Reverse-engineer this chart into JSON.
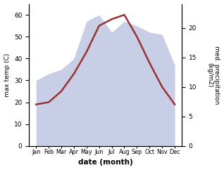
{
  "months": [
    "Jan",
    "Feb",
    "Mar",
    "Apr",
    "May",
    "Jun",
    "Jul",
    "Aug",
    "Sep",
    "Oct",
    "Nov",
    "Dec"
  ],
  "temp_max": [
    19,
    20,
    25,
    33,
    43,
    55,
    58,
    60,
    50,
    38,
    27,
    19
  ],
  "precip": [
    30,
    33,
    35,
    40,
    57,
    60,
    52,
    57,
    55,
    52,
    51,
    37
  ],
  "temp_ylim": [
    0,
    65
  ],
  "precip_ylim": [
    0,
    24.1
  ],
  "temp_yticks": [
    0,
    10,
    20,
    30,
    40,
    50,
    60
  ],
  "precip_yticks": [
    0,
    5,
    10,
    15,
    20
  ],
  "fill_color": "#aab4d8",
  "fill_alpha": 0.65,
  "line_color": "#993333",
  "line_width": 1.8,
  "xlabel": "date (month)",
  "ylabel_left": "max temp (C)",
  "ylabel_right": "med. precipitation\n(kg/m2)",
  "bg_color": "#ffffff"
}
